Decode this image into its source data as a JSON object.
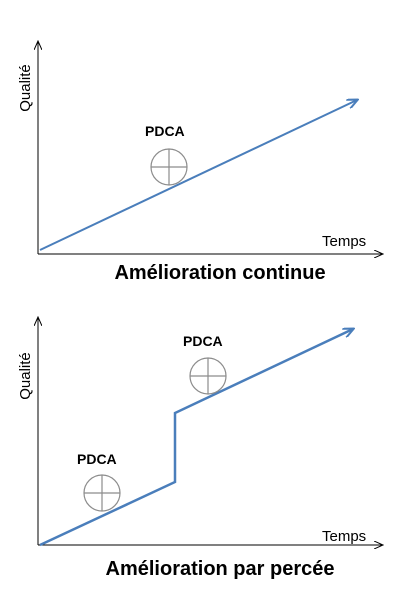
{
  "panels": [
    {
      "y_label": "Qualité",
      "x_label": "Temps",
      "pdca_labels": [
        "PDCA"
      ],
      "title": "Amélioration continue"
    },
    {
      "y_label": "Qualité",
      "x_label": "Temps",
      "pdca_labels": [
        "PDCA",
        "PDCA"
      ],
      "title": "Amélioration par percée"
    }
  ],
  "colors": {
    "axis": "#000000",
    "trend_line": "#4A7EBB",
    "pdca_circle": "#8c8c8c"
  }
}
